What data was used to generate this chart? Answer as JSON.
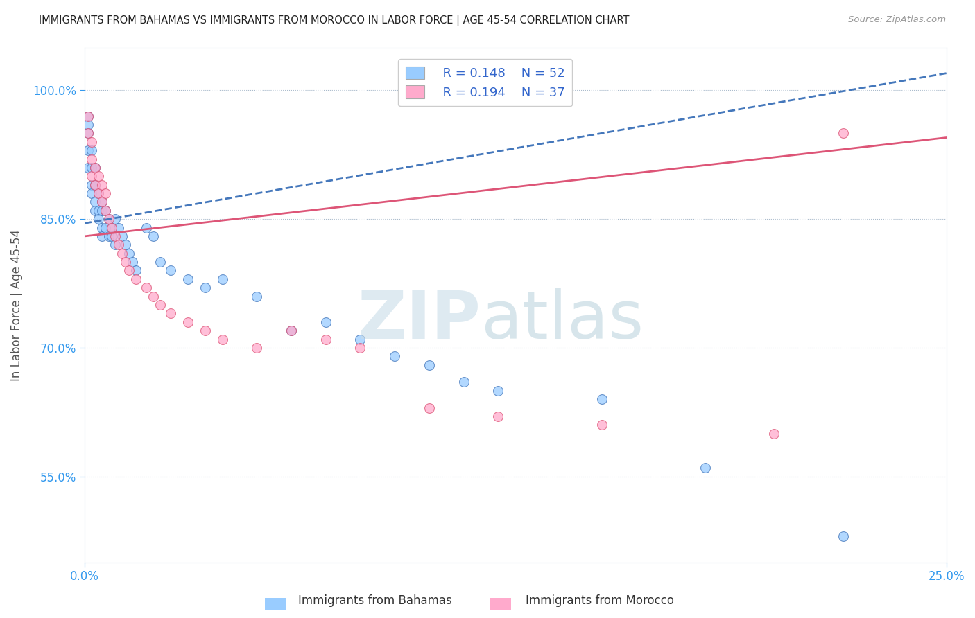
{
  "title": "IMMIGRANTS FROM BAHAMAS VS IMMIGRANTS FROM MOROCCO IN LABOR FORCE | AGE 45-54 CORRELATION CHART",
  "source": "Source: ZipAtlas.com",
  "ylabel": "In Labor Force | Age 45-54",
  "xmin": 0.0,
  "xmax": 0.25,
  "ymin": 0.45,
  "ymax": 1.05,
  "yticks": [
    0.55,
    0.7,
    0.85,
    1.0
  ],
  "ytick_labels": [
    "55.0%",
    "70.0%",
    "85.0%",
    "100.0%"
  ],
  "xticks": [
    0.0,
    0.25
  ],
  "xtick_labels": [
    "0.0%",
    "25.0%"
  ],
  "legend_r_bahamas": "R = 0.148",
  "legend_n_bahamas": "N = 52",
  "legend_r_morocco": "R = 0.194",
  "legend_n_morocco": "N = 37",
  "color_bahamas": "#99ccff",
  "color_morocco": "#ffaacc",
  "line_color_bahamas": "#4477bb",
  "line_color_morocco": "#dd5577",
  "bahamas_x": [
    0.001,
    0.001,
    0.001,
    0.001,
    0.001,
    0.002,
    0.002,
    0.002,
    0.002,
    0.003,
    0.003,
    0.003,
    0.003,
    0.004,
    0.004,
    0.004,
    0.005,
    0.005,
    0.005,
    0.005,
    0.006,
    0.006,
    0.007,
    0.007,
    0.008,
    0.008,
    0.009,
    0.009,
    0.01,
    0.011,
    0.012,
    0.013,
    0.014,
    0.015,
    0.018,
    0.02,
    0.022,
    0.025,
    0.03,
    0.035,
    0.04,
    0.05,
    0.06,
    0.07,
    0.08,
    0.09,
    0.1,
    0.11,
    0.12,
    0.15,
    0.18,
    0.22
  ],
  "bahamas_y": [
    0.97,
    0.96,
    0.95,
    0.93,
    0.91,
    0.93,
    0.91,
    0.89,
    0.88,
    0.91,
    0.89,
    0.87,
    0.86,
    0.88,
    0.86,
    0.85,
    0.87,
    0.86,
    0.84,
    0.83,
    0.86,
    0.84,
    0.85,
    0.83,
    0.84,
    0.83,
    0.85,
    0.82,
    0.84,
    0.83,
    0.82,
    0.81,
    0.8,
    0.79,
    0.84,
    0.83,
    0.8,
    0.79,
    0.78,
    0.77,
    0.78,
    0.76,
    0.72,
    0.73,
    0.71,
    0.69,
    0.68,
    0.66,
    0.65,
    0.64,
    0.56,
    0.48
  ],
  "morocco_x": [
    0.001,
    0.001,
    0.002,
    0.002,
    0.002,
    0.003,
    0.003,
    0.004,
    0.004,
    0.005,
    0.005,
    0.006,
    0.006,
    0.007,
    0.008,
    0.009,
    0.01,
    0.011,
    0.012,
    0.013,
    0.015,
    0.018,
    0.02,
    0.022,
    0.025,
    0.03,
    0.035,
    0.04,
    0.05,
    0.06,
    0.07,
    0.08,
    0.1,
    0.12,
    0.15,
    0.2,
    0.22
  ],
  "morocco_y": [
    0.97,
    0.95,
    0.94,
    0.92,
    0.9,
    0.91,
    0.89,
    0.9,
    0.88,
    0.89,
    0.87,
    0.88,
    0.86,
    0.85,
    0.84,
    0.83,
    0.82,
    0.81,
    0.8,
    0.79,
    0.78,
    0.77,
    0.76,
    0.75,
    0.74,
    0.73,
    0.72,
    0.71,
    0.7,
    0.72,
    0.71,
    0.7,
    0.63,
    0.62,
    0.61,
    0.6,
    0.95
  ],
  "bahamas_line_x": [
    0.0,
    0.25
  ],
  "bahamas_line_y": [
    0.845,
    1.02
  ],
  "morocco_line_x": [
    0.0,
    0.25
  ],
  "morocco_line_y": [
    0.83,
    0.945
  ]
}
